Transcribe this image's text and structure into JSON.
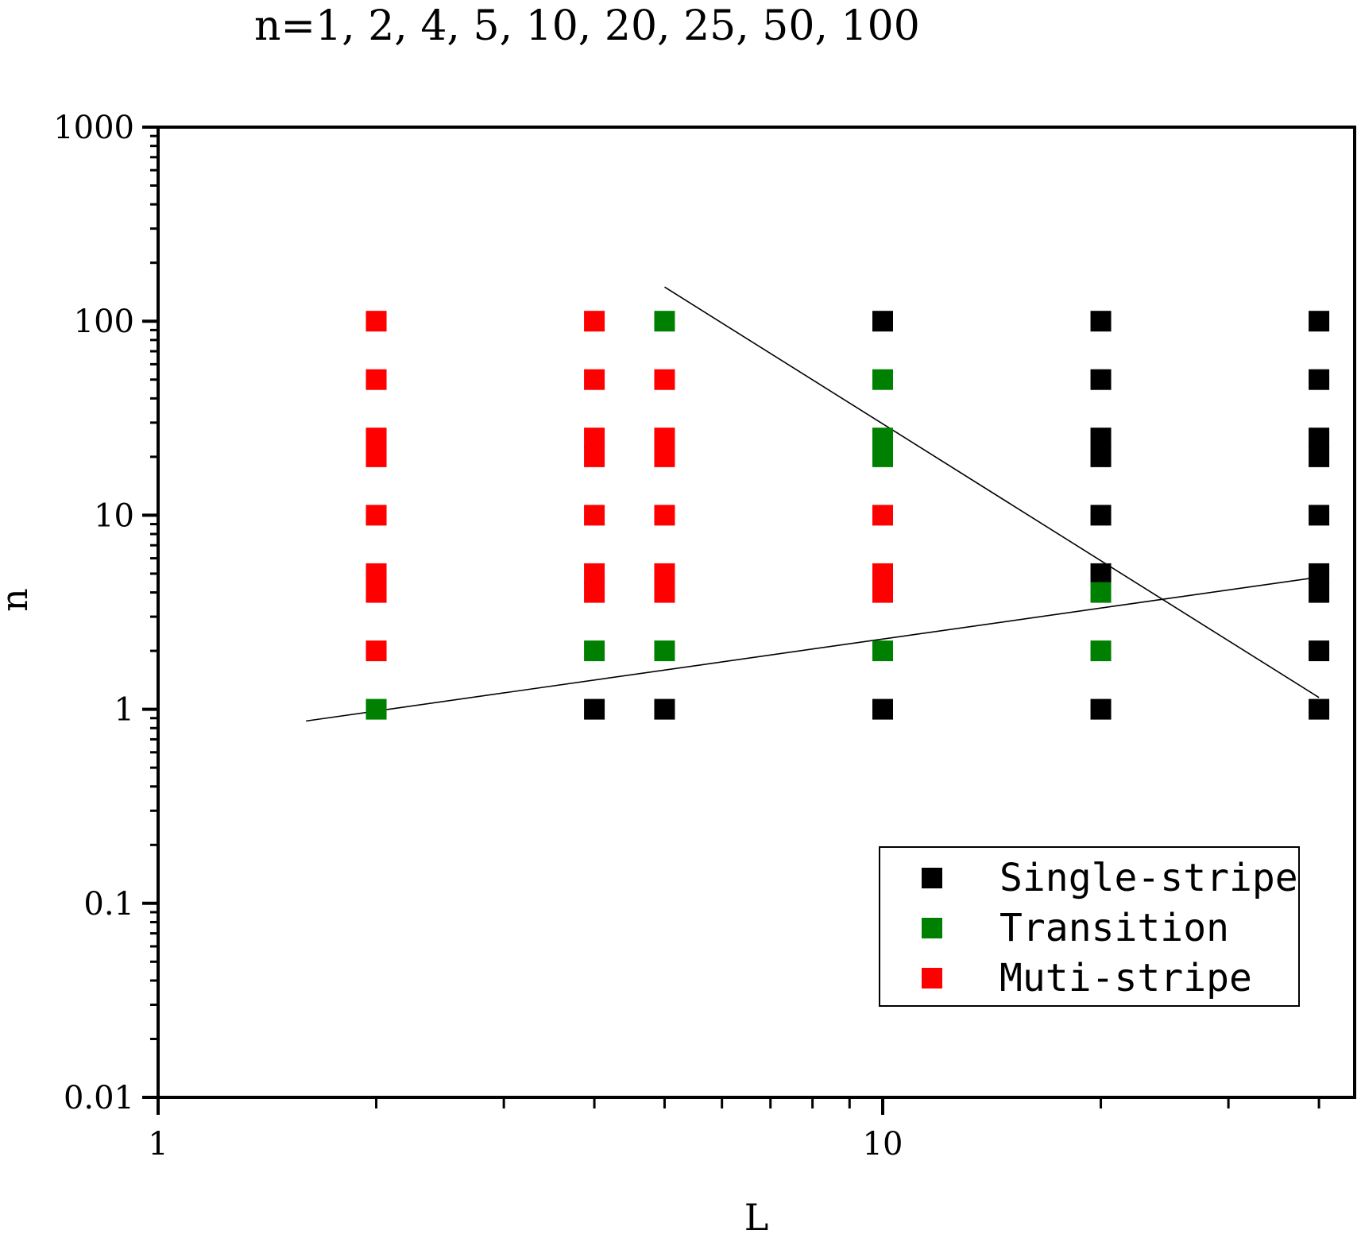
{
  "chart_data": {
    "type": "scatter",
    "title": "",
    "annotation": "n=1, 2, 4, 5, 10, 20, 25, 50, 100",
    "xlabel": "L",
    "ylabel": "n",
    "xscale": "log",
    "yscale": "log",
    "xlim": [
      1,
      40
    ],
    "ylim": [
      0.01,
      1000
    ],
    "x_ticks": [
      {
        "value": 1,
        "label": "1"
      },
      {
        "value": 10,
        "label": "10"
      }
    ],
    "y_ticks": [
      {
        "value": 0.01,
        "label": "0.01"
      },
      {
        "value": 0.1,
        "label": "0.1"
      },
      {
        "value": 1,
        "label": "1"
      },
      {
        "value": 10,
        "label": "10"
      },
      {
        "value": 100,
        "label": "100"
      },
      {
        "value": 1000,
        "label": "1000"
      }
    ],
    "legend_position": "bottom-right",
    "series": [
      {
        "name": "Single-stripe",
        "color": "#000000",
        "marker": "square",
        "points": [
          [
            4,
            1
          ],
          [
            5,
            1
          ],
          [
            10,
            1
          ],
          [
            10,
            100
          ],
          [
            20,
            1
          ],
          [
            20,
            5
          ],
          [
            20,
            10
          ],
          [
            20,
            20
          ],
          [
            20,
            25
          ],
          [
            20,
            50
          ],
          [
            20,
            100
          ],
          [
            40,
            1
          ],
          [
            40,
            2
          ],
          [
            40,
            4
          ],
          [
            40,
            5
          ],
          [
            40,
            10
          ],
          [
            40,
            20
          ],
          [
            40,
            25
          ],
          [
            40,
            50
          ],
          [
            40,
            100
          ]
        ]
      },
      {
        "name": "Transition",
        "color": "#008000",
        "marker": "square",
        "points": [
          [
            2,
            1
          ],
          [
            4,
            2
          ],
          [
            5,
            2
          ],
          [
            5,
            100
          ],
          [
            10,
            2
          ],
          [
            10,
            20
          ],
          [
            10,
            25
          ],
          [
            10,
            50
          ],
          [
            20,
            2
          ],
          [
            20,
            4
          ]
        ]
      },
      {
        "name": "Muti-stripe",
        "color": "#ff0000",
        "marker": "square",
        "points": [
          [
            2,
            2
          ],
          [
            2,
            4
          ],
          [
            2,
            5
          ],
          [
            2,
            10
          ],
          [
            2,
            20
          ],
          [
            2,
            25
          ],
          [
            2,
            50
          ],
          [
            2,
            100
          ],
          [
            4,
            4
          ],
          [
            4,
            5
          ],
          [
            4,
            10
          ],
          [
            4,
            20
          ],
          [
            4,
            25
          ],
          [
            4,
            50
          ],
          [
            4,
            100
          ],
          [
            5,
            4
          ],
          [
            5,
            5
          ],
          [
            5,
            10
          ],
          [
            5,
            20
          ],
          [
            5,
            25
          ],
          [
            5,
            50
          ],
          [
            10,
            4
          ],
          [
            10,
            5
          ],
          [
            10,
            10
          ]
        ]
      }
    ],
    "lines": [
      {
        "name": "boundary-line-upper",
        "points": [
          [
            5,
            150
          ],
          [
            40,
            1.15
          ]
        ],
        "color": "#000000"
      },
      {
        "name": "boundary-line-lower",
        "points": [
          [
            1.6,
            0.87
          ],
          [
            40,
            4.8
          ]
        ],
        "color": "#000000"
      }
    ]
  }
}
